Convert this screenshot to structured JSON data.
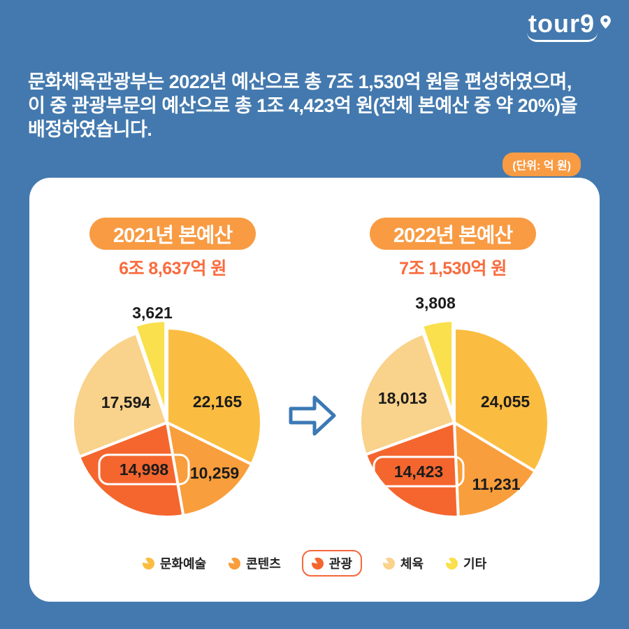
{
  "logo": {
    "text": "tour9"
  },
  "intro": {
    "line1": "문화체육관광부는 2022년 예산으로 총 7조 1,530억 원을 편성하였으며,",
    "line2": "이 중 관광부문의 예산으로 총 1조 4,423억 원(전체 본예산 중 약 20%)을",
    "line3": "배정하였습니다."
  },
  "unit_badge": "(단위: 억 원)",
  "palette": [
    "#FBBD41",
    "#F99E3C",
    "#F4662E",
    "#F9D28B",
    "#F9E04C"
  ],
  "colors": {
    "background": "#4379AE",
    "badge_orange": "#F89B43",
    "subtitle_orange": "#F96B3D",
    "arrow_blue": "#3B79B5",
    "highlight_outline": "#F4683C",
    "label_text": "#1B1B1B",
    "card": "#FFFFFF"
  },
  "chart_data": [
    {
      "type": "pie",
      "title": "2021년 본예산",
      "subtitle": "6조 8,637억 원",
      "total": 68637,
      "categories": [
        "문화예술",
        "콘텐츠",
        "관광",
        "체육",
        "기타"
      ],
      "values": [
        22165,
        10259,
        14998,
        17594,
        3621
      ],
      "values_display": [
        "22,165",
        "10,259",
        "14,998",
        "17,594",
        "3,621"
      ],
      "highlight_category": "관광",
      "highlight_index": 2,
      "exploded_index": 4,
      "start_angle_deg": 0,
      "direction": "clockwise"
    },
    {
      "type": "pie",
      "title": "2022년 본예산",
      "subtitle": "7조 1,530억 원",
      "total": 71530,
      "categories": [
        "문화예술",
        "콘텐츠",
        "관광",
        "체육",
        "기타"
      ],
      "values": [
        24055,
        11231,
        14423,
        18013,
        3808
      ],
      "values_display": [
        "24,055",
        "11,231",
        "14,423",
        "18,013",
        "3,808"
      ],
      "highlight_category": "관광",
      "highlight_index": 2,
      "exploded_index": 4,
      "start_angle_deg": 0,
      "direction": "clockwise"
    }
  ],
  "legend": {
    "items": [
      {
        "label": "문화예술",
        "highlighted": false
      },
      {
        "label": "콘텐츠",
        "highlighted": false
      },
      {
        "label": "관광",
        "highlighted": true
      },
      {
        "label": "체육",
        "highlighted": false
      },
      {
        "label": "기타",
        "highlighted": false
      }
    ]
  }
}
